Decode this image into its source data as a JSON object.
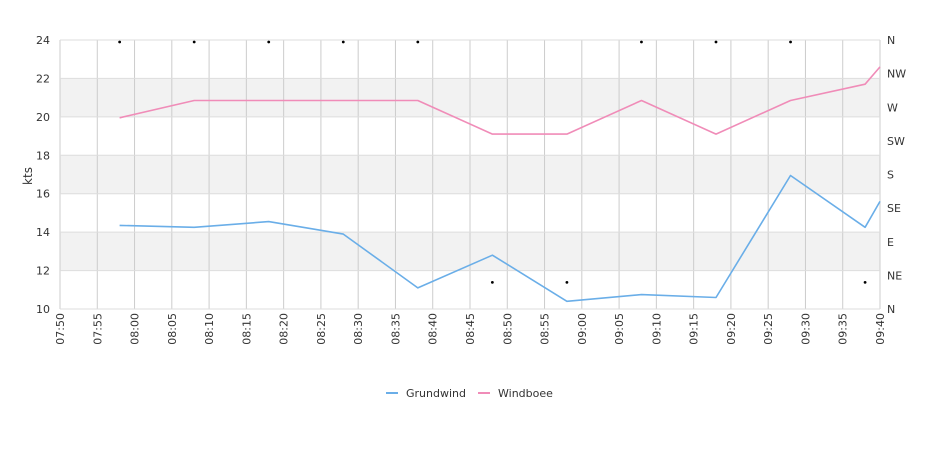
{
  "chart_data": {
    "type": "line",
    "ylabel": "kts",
    "ylim": [
      10,
      24
    ],
    "y_ticks": [
      "10",
      "12",
      "14",
      "16",
      "18",
      "20",
      "22",
      "24"
    ],
    "y2_ticks": [
      "N",
      "NE",
      "E",
      "SE",
      "S",
      "SW",
      "W",
      "NW",
      "N"
    ],
    "x_ticks": [
      "07:50",
      "07:55",
      "08:00",
      "08:05",
      "08:10",
      "08:15",
      "08:20",
      "08:25",
      "08:30",
      "08:35",
      "08:40",
      "08:45",
      "08:50",
      "08:55",
      "09:00",
      "09:05",
      "09:10",
      "09:15",
      "09:20",
      "09:25",
      "09:30",
      "09:35",
      "09:40"
    ],
    "x_range": [
      "07:50",
      "09:40"
    ],
    "x": [
      "07:58",
      "08:08",
      "08:18",
      "08:28",
      "08:38",
      "08:48",
      "08:58",
      "09:08",
      "09:18",
      "09:28",
      "09:38",
      "09:40"
    ],
    "series": [
      {
        "name": "Grundwind",
        "color": "#6aaee8",
        "values": [
          14.35,
          14.25,
          14.55,
          13.9,
          11.1,
          12.8,
          10.4,
          10.75,
          10.6,
          16.95,
          14.25,
          15.6
        ]
      },
      {
        "name": "Windboee",
        "color": "#f08cb8",
        "values": [
          19.95,
          20.85,
          20.85,
          20.85,
          20.85,
          19.1,
          19.1,
          20.85,
          19.1,
          20.85,
          21.7,
          22.6
        ]
      }
    ],
    "direction_markers": [
      {
        "x": "07:58",
        "direction": "N"
      },
      {
        "x": "08:08",
        "direction": "N"
      },
      {
        "x": "08:18",
        "direction": "N"
      },
      {
        "x": "08:28",
        "direction": "N"
      },
      {
        "x": "08:38",
        "direction": "N"
      },
      {
        "x": "08:48",
        "direction": "NE"
      },
      {
        "x": "08:58",
        "direction": "NE"
      },
      {
        "x": "09:08",
        "direction": "N"
      },
      {
        "x": "09:18",
        "direction": "N"
      },
      {
        "x": "09:28",
        "direction": "N"
      },
      {
        "x": "09:38",
        "direction": "NE"
      }
    ],
    "grid": true,
    "legend": "bottom-center"
  }
}
